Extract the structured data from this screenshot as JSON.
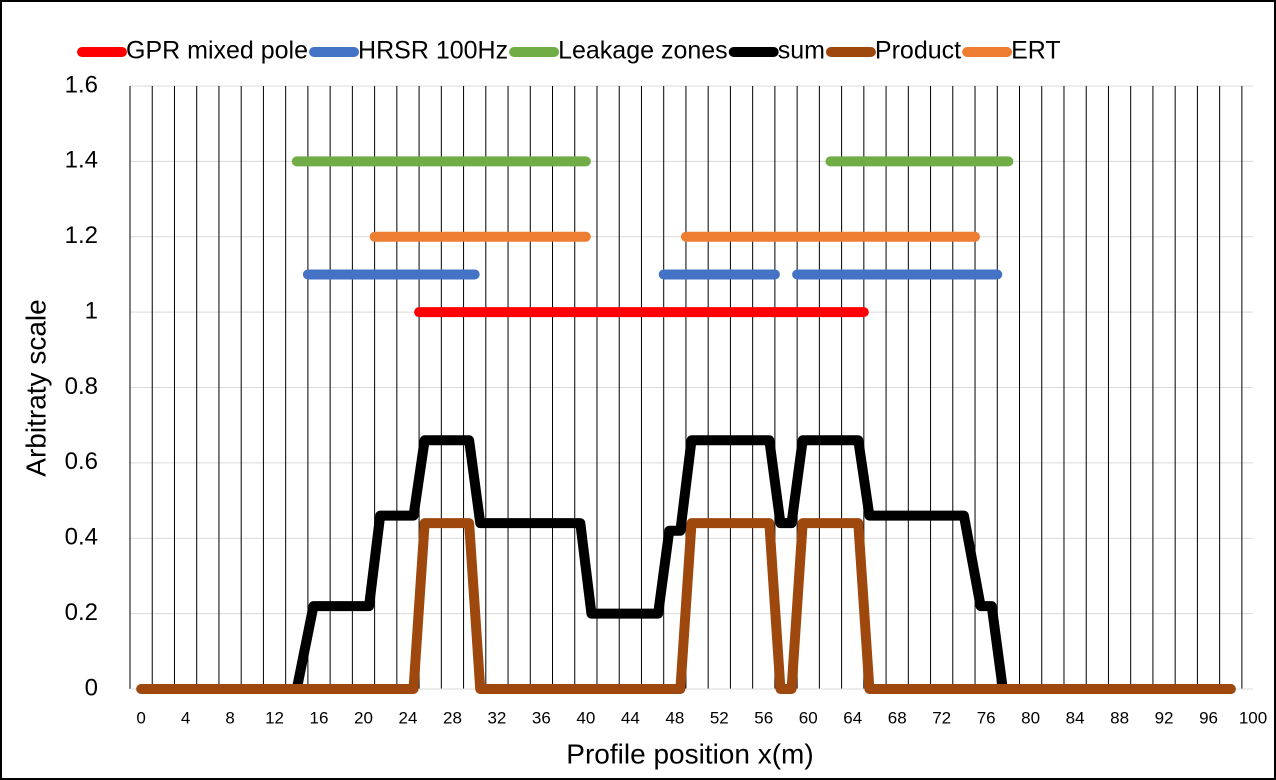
{
  "chart_data": {
    "type": "line",
    "x_label": "Profile position x(m)",
    "y_label": "Arbitraty scale",
    "xlim": [
      -1,
      100
    ],
    "ylim": [
      0,
      1.6
    ],
    "xticks": [
      0,
      4,
      8,
      12,
      16,
      20,
      24,
      28,
      32,
      36,
      40,
      44,
      48,
      52,
      56,
      60,
      64,
      68,
      72,
      76,
      80,
      84,
      88,
      92,
      96,
      100
    ],
    "x_gridlines": [
      -1,
      1,
      3,
      5,
      7,
      9,
      11,
      13,
      15,
      17,
      19,
      21,
      23,
      25,
      27,
      29,
      31,
      33,
      35,
      37,
      39,
      41,
      43,
      45,
      47,
      49,
      51,
      53,
      55,
      57,
      59,
      61,
      63,
      65,
      67,
      69,
      71,
      73,
      75,
      77,
      79,
      81,
      83,
      85,
      87,
      89,
      91,
      93,
      95,
      97,
      99
    ],
    "yticks": [
      0,
      0.2,
      0.4,
      0.6,
      0.8,
      1,
      1.2,
      1.4,
      1.6
    ],
    "grid": true,
    "legend": "top",
    "series": [
      {
        "name": "GPR mixed pole",
        "color": "#ff0000",
        "x": [
          25,
          65
        ],
        "values": [
          1,
          1
        ]
      },
      {
        "name": "HRSR 100Hz",
        "color": "#4472c4",
        "x": [
          15,
          30,
          38,
          47,
          57,
          58,
          59,
          77
        ],
        "values": [
          1.1,
          1.1,
          null,
          1.1,
          1.1,
          null,
          1.1,
          1.1
        ]
      },
      {
        "name": "Leakage zones",
        "color": "#70ad47",
        "x": [
          14,
          40,
          51,
          62,
          78
        ],
        "values": [
          1.4,
          1.4,
          null,
          1.4,
          1.4
        ]
      },
      {
        "name": "sum",
        "color": "#000000",
        "x": [
          14,
          15.5,
          20.5,
          21.5,
          24.5,
          25.5,
          29.5,
          30.5,
          39.5,
          40.5,
          46.5,
          47.5,
          48.5,
          49.5,
          56.5,
          57.5,
          58.5,
          59.5,
          64.5,
          65.5,
          74,
          75.5,
          76.5,
          77.5,
          98
        ],
        "values": [
          0,
          0.22,
          0.22,
          0.46,
          0.46,
          0.66,
          0.66,
          0.44,
          0.44,
          0.2,
          0.2,
          0.42,
          0.42,
          0.66,
          0.66,
          0.44,
          0.44,
          0.66,
          0.66,
          0.46,
          0.46,
          0.22,
          0.22,
          0,
          0
        ]
      },
      {
        "name": "Product",
        "color": "#9e480e",
        "x": [
          0,
          24.5,
          25.5,
          29.5,
          30.5,
          48.5,
          49.5,
          56.5,
          57.5,
          58.5,
          59.5,
          64.5,
          65.5,
          98
        ],
        "values": [
          0,
          0,
          0.44,
          0.44,
          0,
          0,
          0.44,
          0.44,
          0,
          0,
          0.44,
          0.44,
          0,
          0
        ]
      },
      {
        "name": "ERT",
        "color": "#ed7d31",
        "x": [
          21,
          40,
          45,
          49,
          75
        ],
        "values": [
          1.2,
          1.2,
          null,
          1.2,
          1.2
        ]
      }
    ]
  }
}
